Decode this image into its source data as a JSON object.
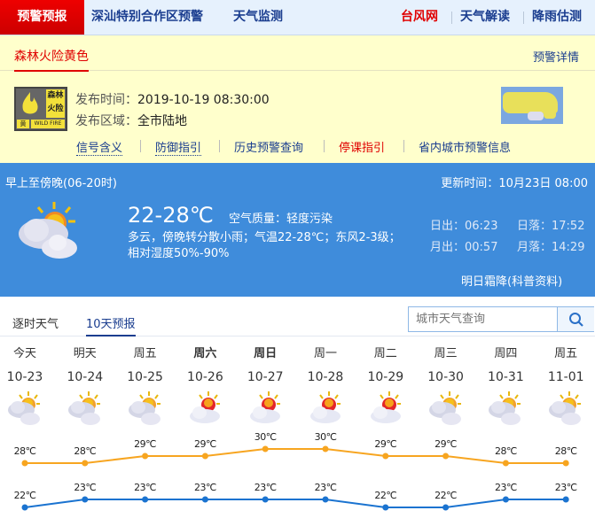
{
  "nav": {
    "active": "预警预报",
    "items": [
      "深汕特别合作区预警",
      "天气监测"
    ],
    "right": [
      {
        "label": "台风网",
        "color": "#e00000"
      },
      {
        "label": "天气解读",
        "color": "#1a3d8f"
      },
      {
        "label": "降雨估测",
        "color": "#1a3d8f"
      }
    ]
  },
  "warning": {
    "tab": "森林火险黄色",
    "details_link": "预警详情",
    "badge": {
      "line1": "森林",
      "line2": "火险",
      "level": "黄",
      "en": "WILD FIRE"
    },
    "issue_time_label": "发布时间：",
    "issue_time": "2019-10-19 08:30:00",
    "area_label": "发布区域：",
    "area": "全市陆地",
    "links": [
      {
        "label": "信号含义",
        "color": "#1a3d8f"
      },
      {
        "label": "防御指引",
        "color": "#1a3d8f"
      },
      {
        "label": "历史预警查询",
        "color": "#1a3d8f"
      },
      {
        "label": "停课指引",
        "color": "#e00000"
      },
      {
        "label": "省内城市预警信息",
        "color": "#1a3d8f"
      }
    ]
  },
  "today": {
    "period": "早上至傍晚(06-20时)",
    "update_label": "更新时间：",
    "update_time": "10月23日 08:00",
    "temp": "22-28℃",
    "aqi_label": "空气质量：",
    "aqi": "轻度污染",
    "desc1": "多云，傍晚转分散小雨；气温22-28℃；东风2-3级；",
    "desc2": "相对湿度50%-90%",
    "sunrise": "日出：06:23",
    "sunset": "日落：17:52",
    "moonrise": "月出：00:57",
    "moonset": "月落：14:29",
    "tip": "明日霜降(科普资料)",
    "icon": "cloudy-sun-icon"
  },
  "tabs": [
    "逐时天气",
    "10天预报"
  ],
  "active_tab": 1,
  "search": {
    "placeholder": "城市天气查询"
  },
  "forecast": {
    "days": [
      {
        "day": "今天",
        "date": "10-23",
        "icon": "cloudy",
        "bold": false
      },
      {
        "day": "明天",
        "date": "10-24",
        "icon": "cloudy",
        "bold": false
      },
      {
        "day": "周五",
        "date": "10-25",
        "icon": "cloudy",
        "bold": false
      },
      {
        "day": "周六",
        "date": "10-26",
        "icon": "partly-sunny",
        "bold": true
      },
      {
        "day": "周日",
        "date": "10-27",
        "icon": "partly-sunny",
        "bold": true
      },
      {
        "day": "周一",
        "date": "10-28",
        "icon": "partly-sunny",
        "bold": false
      },
      {
        "day": "周二",
        "date": "10-29",
        "icon": "partly-sunny",
        "bold": false
      },
      {
        "day": "周三",
        "date": "10-30",
        "icon": "cloudy",
        "bold": false
      },
      {
        "day": "周四",
        "date": "10-31",
        "icon": "cloudy",
        "bold": false
      },
      {
        "day": "周五",
        "date": "11-01",
        "icon": "cloudy",
        "bold": false
      }
    ],
    "high": [
      28,
      28,
      29,
      29,
      30,
      30,
      29,
      29,
      28,
      28
    ],
    "low": [
      22,
      23,
      23,
      23,
      23,
      23,
      22,
      22,
      23,
      23
    ],
    "unit": "℃",
    "colors": {
      "high": "#f7a520",
      "low": "#1a73d0"
    }
  }
}
